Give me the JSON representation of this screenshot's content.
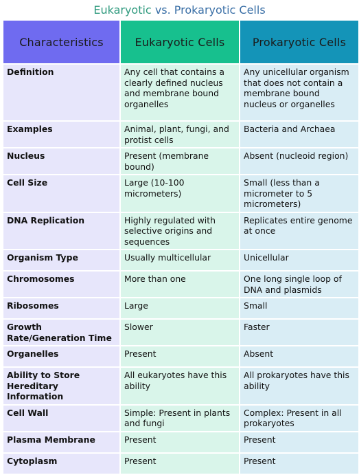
{
  "title": {
    "part1": "Eukaryotic",
    "part2": "vs.",
    "part3": "Prokaryotic Cells"
  },
  "headers": {
    "col1": "Characteristics",
    "col2": "Eukaryotic Cells",
    "col3": "Prokaryotic Cells"
  },
  "colors": {
    "header_col1": "#6f6bf0",
    "header_col2": "#17c08e",
    "header_col3": "#1494b8",
    "title_green": "#2f9a7e",
    "title_blue": "#3a6fa6"
  },
  "rows": [
    {
      "characteristic": "Definition",
      "eukaryotic": "Any cell that contains a clearly defined nucleus and membrane bound organelles",
      "prokaryotic": "Any unicellular organism that does not contain a membrane bound nucleus or organelles"
    },
    {
      "characteristic": "Examples",
      "eukaryotic": "Animal, plant, fungi, and protist cells",
      "prokaryotic": "Bacteria and Archaea"
    },
    {
      "characteristic": "Nucleus",
      "eukaryotic": "Present (membrane bound)",
      "prokaryotic": "Absent (nucleoid region)"
    },
    {
      "characteristic": "Cell Size",
      "eukaryotic": "Large (10-100 micrometers)",
      "prokaryotic": "Small (less than a micrometer to 5 micrometers)"
    },
    {
      "characteristic": "DNA Replication",
      "eukaryotic": "Highly regulated with selective origins and sequences",
      "prokaryotic": "Replicates entire genome at once"
    },
    {
      "characteristic": "Organism Type",
      "eukaryotic": "Usually multicellular",
      "prokaryotic": "Unicellular"
    },
    {
      "characteristic": "Chromosomes",
      "eukaryotic": "More than one",
      "prokaryotic": "One long single loop of DNA and plasmids"
    },
    {
      "characteristic": "Ribosomes",
      "eukaryotic": "Large",
      "prokaryotic": "Small"
    },
    {
      "characteristic": "Growth Rate/Generation Time",
      "eukaryotic": "Slower",
      "prokaryotic": "Faster"
    },
    {
      "characteristic": "Organelles",
      "eukaryotic": "Present",
      "prokaryotic": "Absent"
    },
    {
      "characteristic": "Ability to Store Hereditary Information",
      "eukaryotic": "All eukaryotes have this ability",
      "prokaryotic": "All prokaryotes have this ability"
    },
    {
      "characteristic": "Cell Wall",
      "eukaryotic": "Simple: Present in plants and fungi",
      "prokaryotic": "Complex: Present in all prokaryotes"
    },
    {
      "characteristic": "Plasma Membrane",
      "eukaryotic": "Present",
      "prokaryotic": "Present"
    },
    {
      "characteristic": "Cytoplasm",
      "eukaryotic": "Present",
      "prokaryotic": "Present"
    }
  ]
}
